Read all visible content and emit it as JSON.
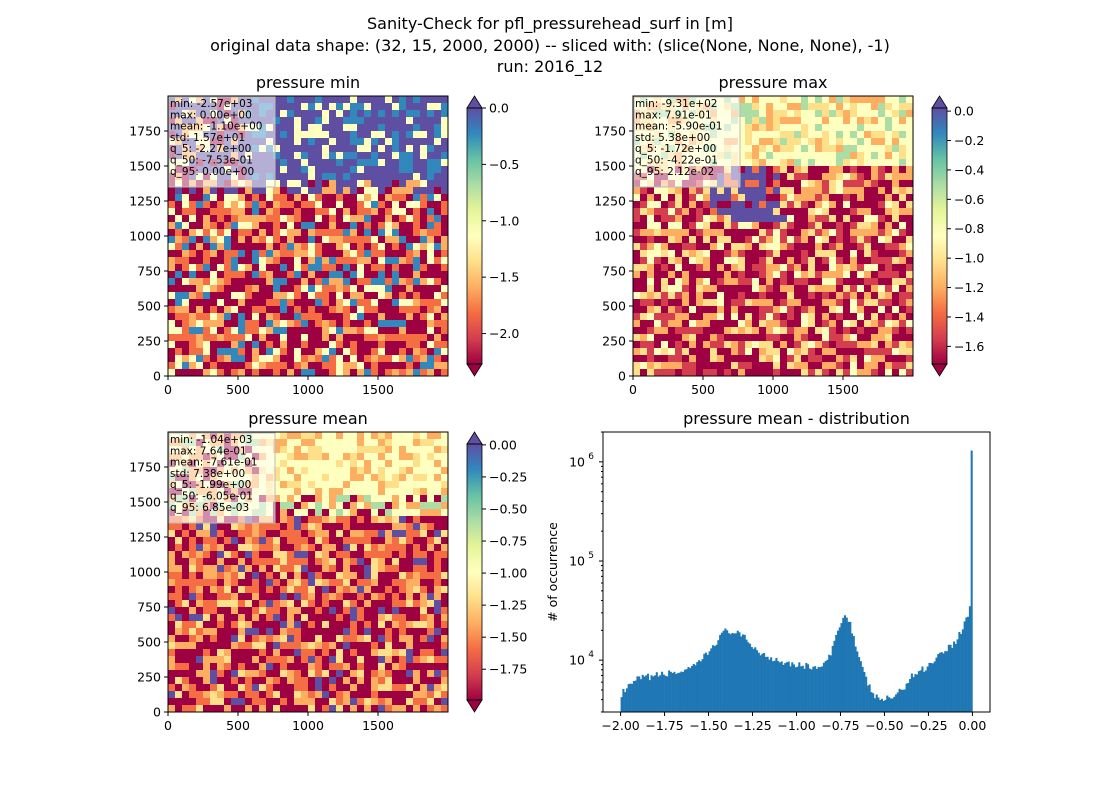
{
  "figure": {
    "title_lines": [
      "Sanity-Check for pfl_pressurehead_surf in [m]",
      "original data shape: (32, 15, 2000, 2000) -- sliced with: (slice(None, None, None), -1)",
      "run: 2016_12"
    ]
  },
  "panels": [
    {
      "title": "pressure min",
      "x_ticks": [
        "0",
        "500",
        "1000",
        "1500"
      ],
      "y_ticks": [
        "0",
        "250",
        "500",
        "750",
        "1000",
        "1250",
        "1500",
        "1750"
      ],
      "stats": [
        "min: -2.57e+03",
        "max: 0.00e+00",
        "mean: -1.10e+00",
        "std: 1.57e+01",
        "q_5: -2.27e+00",
        "q_50: -7.53e-01",
        "q_95: 0.00e+00"
      ],
      "colorbar": {
        "range": [
          -2.27,
          0.0
        ],
        "ticks": [
          {
            "v": 0.0,
            "label": "0.0"
          },
          {
            "v": -0.5,
            "label": "−0.5"
          },
          {
            "v": -1.0,
            "label": "−1.0"
          },
          {
            "v": -1.5,
            "label": "−1.5"
          },
          {
            "v": -2.0,
            "label": "−2.0"
          }
        ],
        "extend": "both"
      }
    },
    {
      "title": "pressure max",
      "x_ticks": [
        "0",
        "500",
        "1000",
        "1500"
      ],
      "y_ticks": [
        "0",
        "250",
        "500",
        "750",
        "1000",
        "1250",
        "1500",
        "1750"
      ],
      "stats": [
        "min: -9.31e+02",
        "max: 7.91e-01",
        "mean: -5.90e-01",
        "std: 5.38e+00",
        "q_5: -1.72e+00",
        "q_50: -4.22e-01",
        "q_95: 2.12e-02"
      ],
      "colorbar": {
        "range": [
          -1.72,
          0.0212
        ],
        "ticks": [
          {
            "v": 0.0,
            "label": "0.0"
          },
          {
            "v": -0.2,
            "label": "−0.2"
          },
          {
            "v": -0.4,
            "label": "−0.4"
          },
          {
            "v": -0.6,
            "label": "−0.6"
          },
          {
            "v": -0.8,
            "label": "−0.8"
          },
          {
            "v": -1.0,
            "label": "−1.0"
          },
          {
            "v": -1.2,
            "label": "−1.2"
          },
          {
            "v": -1.4,
            "label": "−1.4"
          },
          {
            "v": -1.6,
            "label": "−1.6"
          }
        ],
        "extend": "both"
      }
    },
    {
      "title": "pressure mean",
      "x_ticks": [
        "0",
        "500",
        "1000",
        "1500"
      ],
      "y_ticks": [
        "0",
        "250",
        "500",
        "750",
        "1000",
        "1250",
        "1500",
        "1750"
      ],
      "stats": [
        "min: -1.04e+03",
        "max: 7.64e-01",
        "mean: -7.61e-01",
        "std: 7.38e+00",
        "q_5: -1.99e+00",
        "q_50: -6.05e-01",
        "q_95: 6.85e-03"
      ],
      "colorbar": {
        "range": [
          -1.99,
          0.00685
        ],
        "ticks": [
          {
            "v": 0.0,
            "label": "0.00"
          },
          {
            "v": -0.25,
            "label": "−0.25"
          },
          {
            "v": -0.5,
            "label": "−0.50"
          },
          {
            "v": -0.75,
            "label": "−0.75"
          },
          {
            "v": -1.0,
            "label": "−1.00"
          },
          {
            "v": -1.25,
            "label": "−1.25"
          },
          {
            "v": -1.5,
            "label": "−1.50"
          },
          {
            "v": -1.75,
            "label": "−1.75"
          }
        ],
        "extend": "both"
      }
    }
  ],
  "colormap": [
    "#9e0142",
    "#d53e4f",
    "#f46d43",
    "#fdae61",
    "#fee08b",
    "#ffffbf",
    "#e6f598",
    "#abdda4",
    "#66c2a5",
    "#3288bd",
    "#5e4fa2"
  ],
  "histogram": {
    "title": "pressure mean - distribution",
    "ylabel": "# of occurrence",
    "bar_color": "#1f77b4",
    "x_ticks": [
      "−2.00",
      "−1.75",
      "−1.50",
      "−1.25",
      "−1.00",
      "−0.75",
      "−0.50",
      "−0.25",
      "0.00"
    ],
    "y_ticks": [
      "10",
      "10",
      "10"
    ],
    "y_exponents": [
      "4",
      "5",
      "6"
    ]
  },
  "chart_data": [
    {
      "type": "heatmap",
      "title": "pressure min",
      "xlim": [
        0,
        2000
      ],
      "ylim": [
        0,
        2000
      ],
      "colorbar_range": [
        -2.27,
        0.0
      ],
      "extend": "both"
    },
    {
      "type": "heatmap",
      "title": "pressure max",
      "xlim": [
        0,
        2000
      ],
      "ylim": [
        0,
        2000
      ],
      "colorbar_range": [
        -1.72,
        0.0212
      ],
      "extend": "both"
    },
    {
      "type": "heatmap",
      "title": "pressure mean",
      "xlim": [
        0,
        2000
      ],
      "ylim": [
        0,
        2000
      ],
      "colorbar_range": [
        -1.99,
        0.00685
      ],
      "extend": "both"
    },
    {
      "type": "bar",
      "title": "pressure mean - distribution",
      "ylabel": "# of occurrence",
      "y_scale": "log",
      "xlim": [
        -2.1,
        0.1
      ],
      "ylim": [
        3000,
        2000000
      ],
      "x": [
        -2.0,
        -1.9,
        -1.8,
        -1.7,
        -1.6,
        -1.5,
        -1.45,
        -1.4,
        -1.35,
        -1.3,
        -1.25,
        -1.2,
        -1.1,
        -1.0,
        -0.9,
        -0.85,
        -0.8,
        -0.75,
        -0.72,
        -0.7,
        -0.65,
        -0.6,
        -0.55,
        -0.5,
        -0.45,
        -0.4,
        -0.35,
        -0.3,
        -0.25,
        -0.2,
        -0.15,
        -0.1,
        -0.05,
        -0.01,
        0.0
      ],
      "y": [
        4500,
        6500,
        7000,
        7500,
        8000,
        12000,
        16000,
        20000,
        19000,
        17000,
        14000,
        11500,
        10000,
        9000,
        8500,
        8500,
        12000,
        25000,
        28000,
        26000,
        11000,
        6000,
        4200,
        4000,
        4300,
        5000,
        6800,
        7800,
        8800,
        11000,
        13000,
        15000,
        22000,
        35000,
        1300000
      ]
    }
  ]
}
